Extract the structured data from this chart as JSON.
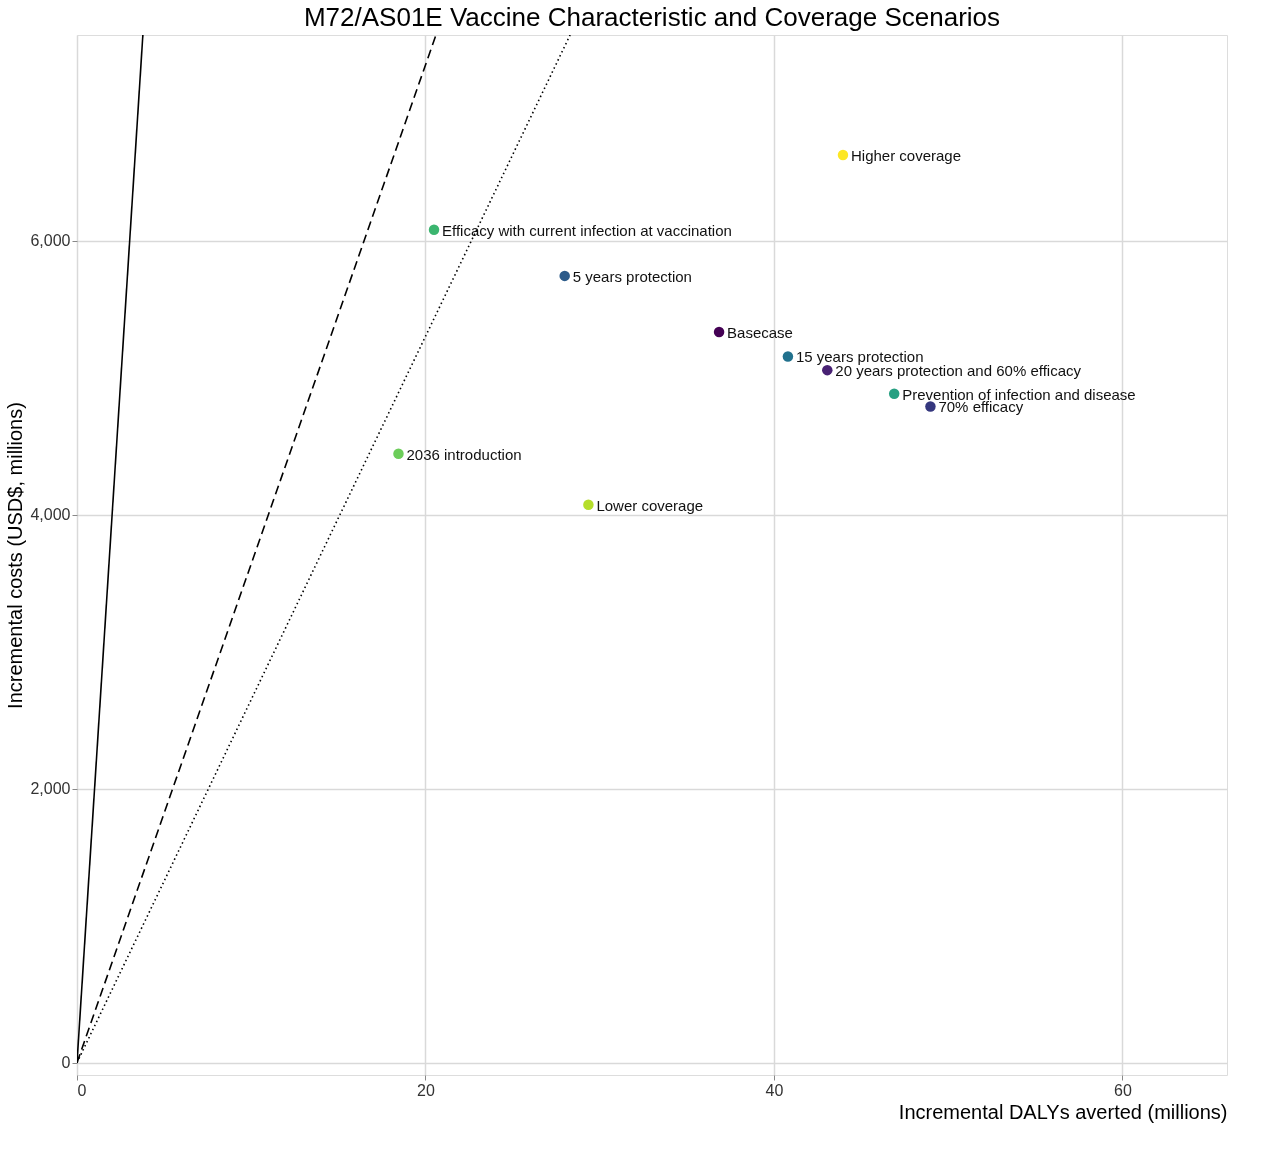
{
  "chart_data": {
    "type": "scatter",
    "title": "M72/AS01E Vaccine Characteristic and Coverage Scenarios",
    "xlabel": "Incremental DALYs averted (millions)",
    "ylabel": "Incremental costs (USD$, millions)",
    "xlim": [
      0,
      66
    ],
    "ylim": [
      -90,
      7500
    ],
    "xticks": [
      0,
      20,
      40,
      60
    ],
    "yticks": [
      0,
      {
        "value": 2000,
        "label": "2,000"
      },
      {
        "value": 4000,
        "label": "4,000"
      },
      {
        "value": 6000,
        "label": "6,000"
      }
    ],
    "grid": true,
    "marker": "circle",
    "series": [
      {
        "type": "line",
        "color": "#000000",
        "line_style": "solid",
        "marker": "none",
        "x": [
          0,
          3.78
        ],
        "values": [
          0,
          7500
        ]
      },
      {
        "type": "line",
        "color": "#000000",
        "line_style": "dashed",
        "marker": "none",
        "x": [
          0,
          20.6
        ],
        "values": [
          0,
          7500
        ]
      },
      {
        "type": "line",
        "color": "#000000",
        "line_style": "dotted",
        "marker": "none",
        "x": [
          0,
          28.3
        ],
        "values": [
          0,
          7500
        ]
      },
      {
        "name": "Higher coverage",
        "color": "#fde725",
        "x": [
          43.96
        ],
        "values": [
          6624
        ]
      },
      {
        "name": "Efficacy with current infection at vaccination",
        "color": "#3bb56f",
        "x": [
          20.49
        ],
        "values": [
          6079
        ]
      },
      {
        "name": "5 years protection",
        "color": "#2c5b8a",
        "x": [
          27.99
        ],
        "values": [
          5742
        ]
      },
      {
        "name": "Basecase",
        "color": "#440154",
        "x": [
          36.85
        ],
        "values": [
          5333
        ]
      },
      {
        "name": "15 years protection",
        "color": "#21718d",
        "x": [
          40.8
        ],
        "values": [
          5154
        ]
      },
      {
        "name": "20 years protection and 60% efficacy",
        "color": "#482173",
        "x": [
          43.06
        ],
        "values": [
          5054
        ]
      },
      {
        "name": "Prevention of infection and disease",
        "color": "#27a082",
        "x": [
          46.9
        ],
        "values": [
          4882
        ]
      },
      {
        "name": "70% efficacy",
        "color": "#35377e",
        "x": [
          48.98
        ],
        "values": [
          4789
        ]
      },
      {
        "name": "2036 introduction",
        "color": "#6ccd5a",
        "x": [
          18.45
        ],
        "values": [
          4444
        ]
      },
      {
        "name": "Lower coverage",
        "color": "#b5de2b",
        "x": [
          29.35
        ],
        "values": [
          4072
        ]
      }
    ]
  }
}
